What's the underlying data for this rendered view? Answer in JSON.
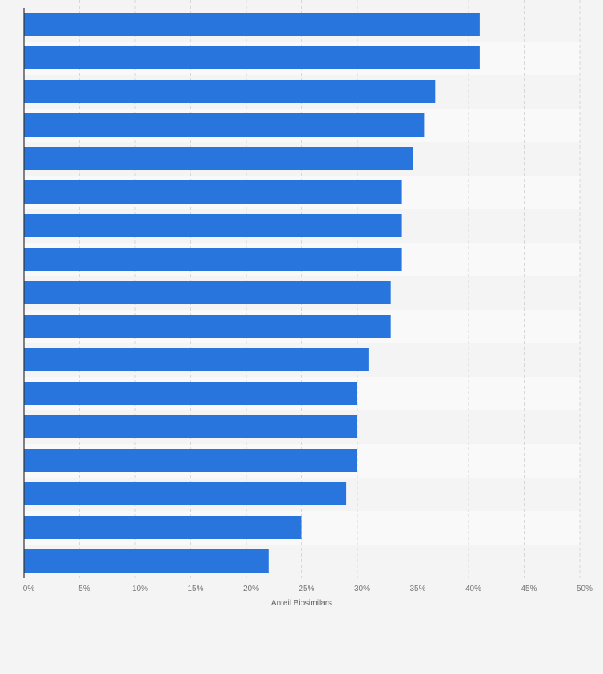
{
  "chart_data": {
    "type": "bar",
    "orientation": "horizontal",
    "categories": [
      "",
      "",
      "",
      "",
      "",
      "",
      "",
      "",
      "",
      "",
      "",
      "",
      "",
      "",
      "",
      "",
      ""
    ],
    "values": [
      41,
      41,
      37,
      36,
      35,
      34,
      34,
      34,
      33,
      33,
      31,
      30,
      30,
      30,
      29,
      25,
      22
    ],
    "xlabel": "Anteil Biosimilars",
    "ylabel": "",
    "xlim": [
      0,
      50
    ],
    "x_ticks": [
      0,
      5,
      10,
      15,
      20,
      25,
      30,
      35,
      40,
      45,
      50
    ],
    "tick_labels": [
      "0%",
      "5%",
      "10%",
      "15%",
      "20%",
      "25%",
      "30%",
      "35%",
      "40%",
      "45%",
      "50%"
    ],
    "grid": true,
    "legend": "none",
    "colors": {
      "bar": "#2876dd",
      "band_light": "#f9f9f9",
      "band_dark": "#f4f4f4",
      "grid": "#d8d8d8",
      "axis": "#333333",
      "tick_text": "#777777",
      "label_text": "#666666"
    }
  }
}
